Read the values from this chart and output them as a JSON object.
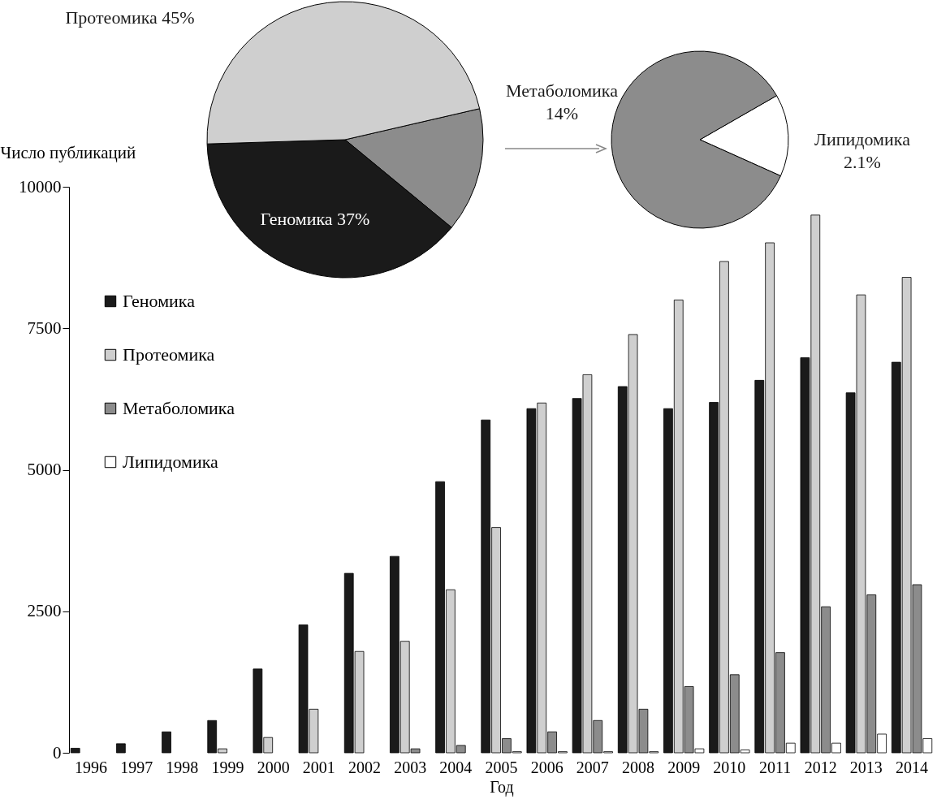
{
  "chart_data": [
    {
      "type": "bar",
      "xlabel": "Год",
      "ylabel": "Число публикаций",
      "categories": [
        "1996",
        "1997",
        "1998",
        "1999",
        "2000",
        "2001",
        "2002",
        "2003",
        "2004",
        "2005",
        "2006",
        "2007",
        "2008",
        "2009",
        "2010",
        "2011",
        "2012",
        "2013",
        "2014"
      ],
      "series": [
        {
          "name": "Геномика",
          "color": "#1a1a1a",
          "values": [
            80,
            160,
            370,
            570,
            1480,
            2260,
            3170,
            3470,
            4790,
            5880,
            6080,
            6260,
            6470,
            6080,
            6190,
            6580,
            6980,
            6360,
            6900
          ]
        },
        {
          "name": "Протеомика",
          "color": "#cfcfcf",
          "values": [
            0,
            0,
            0,
            70,
            270,
            770,
            1790,
            1970,
            2880,
            3980,
            6180,
            6680,
            7390,
            8000,
            8680,
            9010,
            9500,
            8090,
            8400
          ]
        },
        {
          "name": "Метаболомика",
          "color": "#8c8c8c",
          "values": [
            0,
            0,
            0,
            0,
            0,
            0,
            0,
            70,
            130,
            250,
            370,
            570,
            770,
            1170,
            1380,
            1770,
            2580,
            2790,
            2970
          ]
        },
        {
          "name": "Липидомика",
          "color": "#ffffff",
          "values": [
            0,
            0,
            0,
            0,
            0,
            0,
            0,
            0,
            0,
            20,
            20,
            20,
            20,
            70,
            50,
            170,
            170,
            330,
            250
          ]
        }
      ],
      "ylim": [
        0,
        10000
      ],
      "yticks": [
        0,
        2500,
        5000,
        7500,
        10000
      ],
      "grid": false,
      "legend": "top left"
    },
    {
      "type": "pie",
      "categories": [
        "Метаболомика",
        "Геномика",
        "Протеомика"
      ],
      "values": [
        14,
        37,
        45
      ],
      "colors": [
        "#8c8c8c",
        "#1a1a1a",
        "#cfcfcf"
      ],
      "value_labels": [
        "14%",
        "37%",
        "45%"
      ]
    },
    {
      "type": "pie",
      "categories": [
        "Липидомика",
        null
      ],
      "values": [
        2.1,
        11.9
      ],
      "colors": [
        "#ffffff",
        "#8c8c8c"
      ],
      "value_labels": [
        "2.1%",
        null
      ]
    }
  ]
}
